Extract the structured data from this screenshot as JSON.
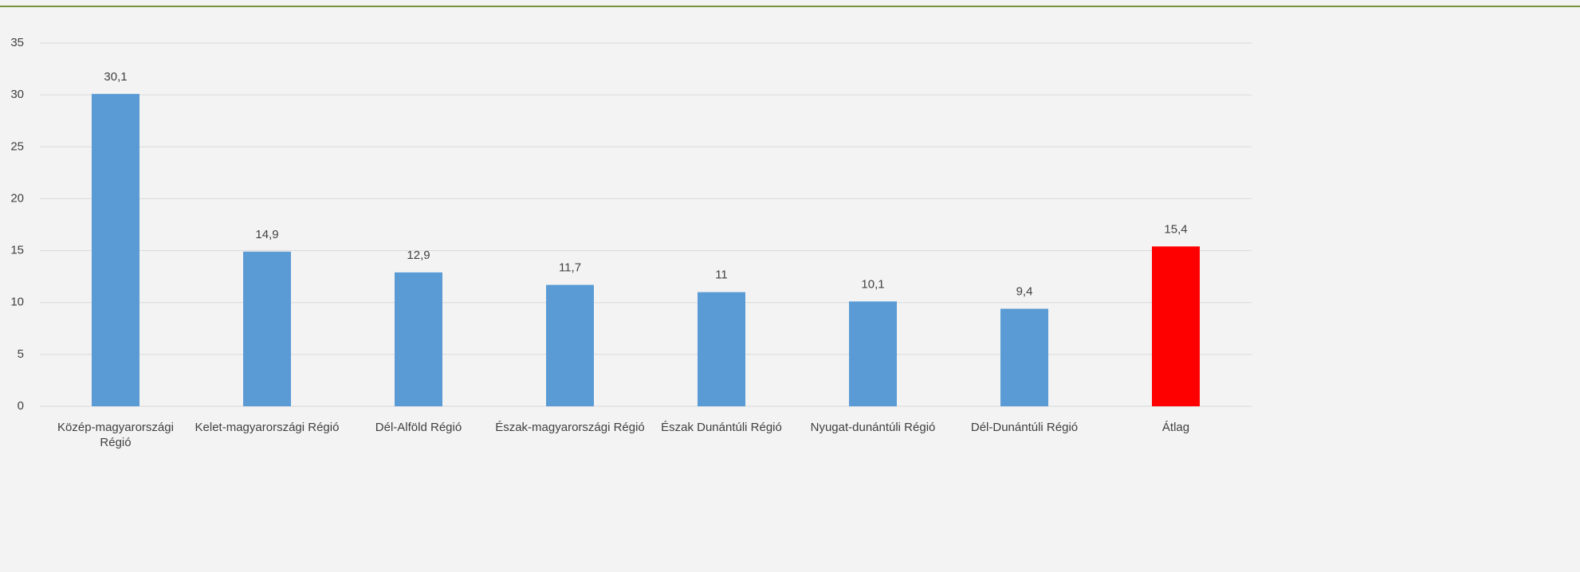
{
  "chart_data": {
    "type": "bar",
    "categories": [
      "Közép-magyarországi Régió",
      "Kelet-magyarországi Régió",
      "Dél-Alföld Régió",
      "Észak-magyarországi Régió",
      "Észak Dunántúli Régió",
      "Nyugat-dunántúli Régió",
      "Dél-Dunántúli Régió",
      "Átlag"
    ],
    "values": [
      30.1,
      14.9,
      12.9,
      11.7,
      11,
      10.1,
      9.4,
      15.4
    ],
    "value_labels": [
      "30,1",
      "14,9",
      "12,9",
      "11,7",
      "11",
      "10,1",
      "9,4",
      "15,4"
    ],
    "colors": [
      "#5b9bd5",
      "#5b9bd5",
      "#5b9bd5",
      "#5b9bd5",
      "#5b9bd5",
      "#5b9bd5",
      "#5b9bd5",
      "#ff0000"
    ],
    "ylim": [
      0,
      35
    ],
    "yticks": [
      0,
      5,
      10,
      15,
      20,
      25,
      30,
      35
    ],
    "grid": true
  }
}
